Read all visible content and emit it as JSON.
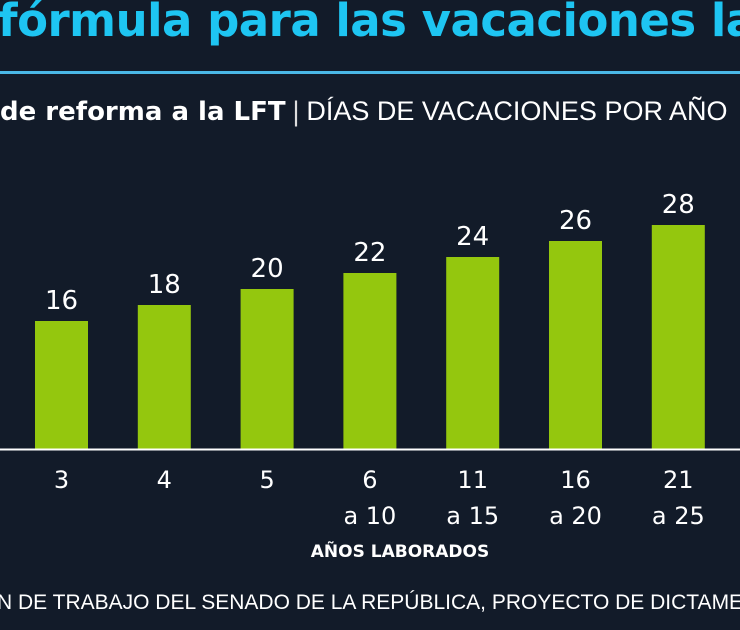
{
  "title": "fórmula para las vacaciones la",
  "subtitle_bold": "de reforma a la LFT",
  "subtitle_sep": "|",
  "subtitle_light": "DÍAS DE VACACIONES POR AÑO",
  "source": "N DE TRABAJO DEL SENADO DE LA REPÚBLICA, PROYECTO DE DICTAMEN",
  "colors": {
    "background": "#121b29",
    "title": "#1ec5f2",
    "bar": "#94c70e",
    "rule": "#4ab8e6"
  },
  "chart_data": {
    "type": "bar",
    "categories": [
      [
        "3"
      ],
      [
        "4"
      ],
      [
        "5"
      ],
      [
        "6",
        "a 10"
      ],
      [
        "11",
        "a 15"
      ],
      [
        "16",
        "a 20"
      ],
      [
        "21",
        "a 25"
      ]
    ],
    "values": [
      16,
      18,
      20,
      22,
      24,
      26,
      28
    ],
    "xlabel": "AÑOS LABORADOS",
    "ylabel": "",
    "ylim": [
      0,
      28
    ],
    "grid": false,
    "data_labels": true
  }
}
